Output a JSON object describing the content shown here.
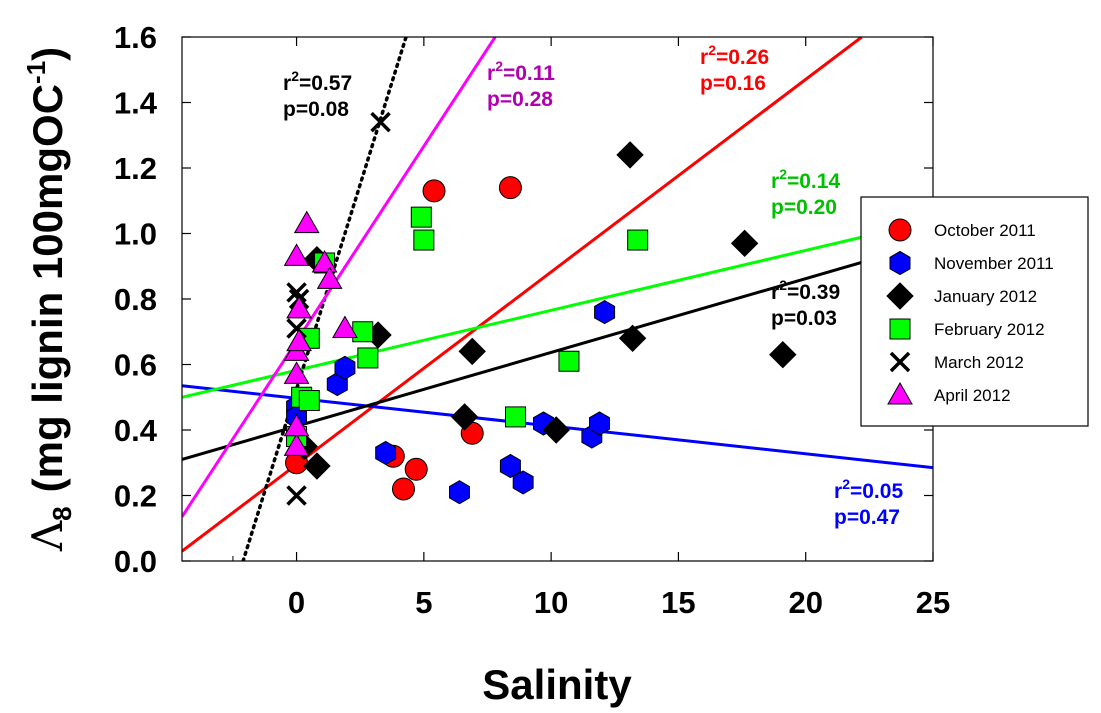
{
  "chart_data": {
    "type": "scatter",
    "title": "",
    "xlabel": "Salinity",
    "ylabel_symbol": "Λ",
    "ylabel_sub": "8",
    "ylabel_text": "(mg lignin 100mgOC",
    "ylabel_sup": "-1",
    "ylabel_close": ")",
    "xlim": [
      -4.5,
      25
    ],
    "ylim": [
      0,
      1.6
    ],
    "xticks": [
      0,
      5,
      10,
      15,
      20,
      25
    ],
    "yticks": [
      "0.0",
      "0.2",
      "0.4",
      "0.6",
      "0.8",
      "1.0",
      "1.2",
      "1.4",
      "1.6"
    ],
    "series": [
      {
        "name": "October 2011",
        "marker": "circle",
        "color": "#ff0000",
        "points": [
          [
            0,
            0.3
          ],
          [
            3.8,
            0.32
          ],
          [
            4.2,
            0.22
          ],
          [
            4.7,
            0.28
          ],
          [
            5.4,
            1.13
          ],
          [
            6.9,
            0.39
          ],
          [
            8.4,
            1.14
          ]
        ]
      },
      {
        "name": "November 2011",
        "marker": "hexagon",
        "color": "#0000ff",
        "points": [
          [
            0,
            0.47
          ],
          [
            0,
            0.44
          ],
          [
            1.6,
            0.54
          ],
          [
            1.9,
            0.59
          ],
          [
            3.5,
            0.33
          ],
          [
            6.4,
            0.21
          ],
          [
            8.4,
            0.29
          ],
          [
            8.9,
            0.24
          ],
          [
            9.7,
            0.42
          ],
          [
            11.6,
            0.38
          ],
          [
            11.9,
            0.42
          ],
          [
            12.1,
            0.76
          ]
        ]
      },
      {
        "name": "January 2012",
        "marker": "diamond",
        "color": "#000000",
        "points": [
          [
            0.3,
            0.35
          ],
          [
            0.8,
            0.29
          ],
          [
            0.8,
            0.92
          ],
          [
            3.2,
            0.69
          ],
          [
            6.6,
            0.44
          ],
          [
            6.9,
            0.64
          ],
          [
            10.2,
            0.4
          ],
          [
            13.1,
            1.24
          ],
          [
            13.2,
            0.68
          ],
          [
            17.6,
            0.97
          ],
          [
            19.1,
            0.63
          ]
        ]
      },
      {
        "name": "February 2012",
        "marker": "square",
        "color": "#00ff00",
        "points": [
          [
            0,
            0.38
          ],
          [
            0.2,
            0.5
          ],
          [
            0.5,
            0.49
          ],
          [
            0.5,
            0.68
          ],
          [
            1.1,
            0.91
          ],
          [
            2.6,
            0.7
          ],
          [
            2.8,
            0.62
          ],
          [
            4.9,
            1.05
          ],
          [
            5.0,
            0.98
          ],
          [
            8.6,
            0.44
          ],
          [
            10.7,
            0.61
          ],
          [
            13.4,
            0.98
          ]
        ]
      },
      {
        "name": "March 2012",
        "marker": "cross",
        "color": "#000000",
        "points": [
          [
            0,
            0.2
          ],
          [
            0,
            0.71
          ],
          [
            0,
            0.82
          ],
          [
            0.1,
            0.8
          ],
          [
            3.3,
            1.34
          ]
        ]
      },
      {
        "name": "April 2012",
        "marker": "triangle",
        "color": "#ff00ff",
        "points": [
          [
            0,
            0.35
          ],
          [
            0,
            0.41
          ],
          [
            0,
            0.57
          ],
          [
            0,
            0.64
          ],
          [
            0.1,
            0.67
          ],
          [
            0.1,
            0.77
          ],
          [
            0,
            0.93
          ],
          [
            0.4,
            1.03
          ],
          [
            1.1,
            0.91
          ],
          [
            1.3,
            0.86
          ],
          [
            1.9,
            0.71
          ]
        ]
      }
    ],
    "regression_lines": [
      {
        "series": "October 2011",
        "color": "#ff0000",
        "dash": false,
        "x": [
          -4.5,
          22.2
        ],
        "y": [
          0.03,
          1.6
        ]
      },
      {
        "series": "November 2011",
        "color": "#0000ff",
        "dash": false,
        "x": [
          -4.5,
          25
        ],
        "y": [
          0.535,
          0.285
        ]
      },
      {
        "series": "January 2012",
        "color": "#000000",
        "dash": false,
        "x": [
          -4.5,
          25
        ],
        "y": [
          0.31,
          0.975
        ]
      },
      {
        "series": "February 2012",
        "color": "#00ff00",
        "dash": false,
        "x": [
          -4.5,
          25
        ],
        "y": [
          0.5,
          1.04
        ]
      },
      {
        "series": "March 2012",
        "color": "#000000",
        "dash": true,
        "x": [
          -2.1,
          4.3
        ],
        "y": [
          0,
          1.6
        ]
      },
      {
        "series": "April 2012",
        "color": "#ff00ff",
        "dash": false,
        "x": [
          -4.5,
          7.8
        ],
        "y": [
          0.135,
          1.6
        ]
      }
    ],
    "annotations": [
      {
        "series": "March 2012",
        "color": "#000000",
        "r2": "0.57",
        "p": "p=0.08"
      },
      {
        "series": "April 2012",
        "color": "#b000b0",
        "r2": "0.11",
        "p": "p=0.28"
      },
      {
        "series": "October 2011",
        "color": "#ff0000",
        "r2": "0.26",
        "p": "p=0.16"
      },
      {
        "series": "February 2012",
        "color": "#00c000",
        "r2": "0.14",
        "p": "p=0.20"
      },
      {
        "series": "January 2012",
        "color": "#000000",
        "r2": "0.39",
        "p": "p=0.03"
      },
      {
        "series": "November 2011",
        "color": "#0000ff",
        "r2": "0.05",
        "p": "p=0.47"
      }
    ],
    "r2_prefix": "r",
    "r2_sup": "2",
    "r2_eq": "=",
    "legend_position": "right"
  }
}
